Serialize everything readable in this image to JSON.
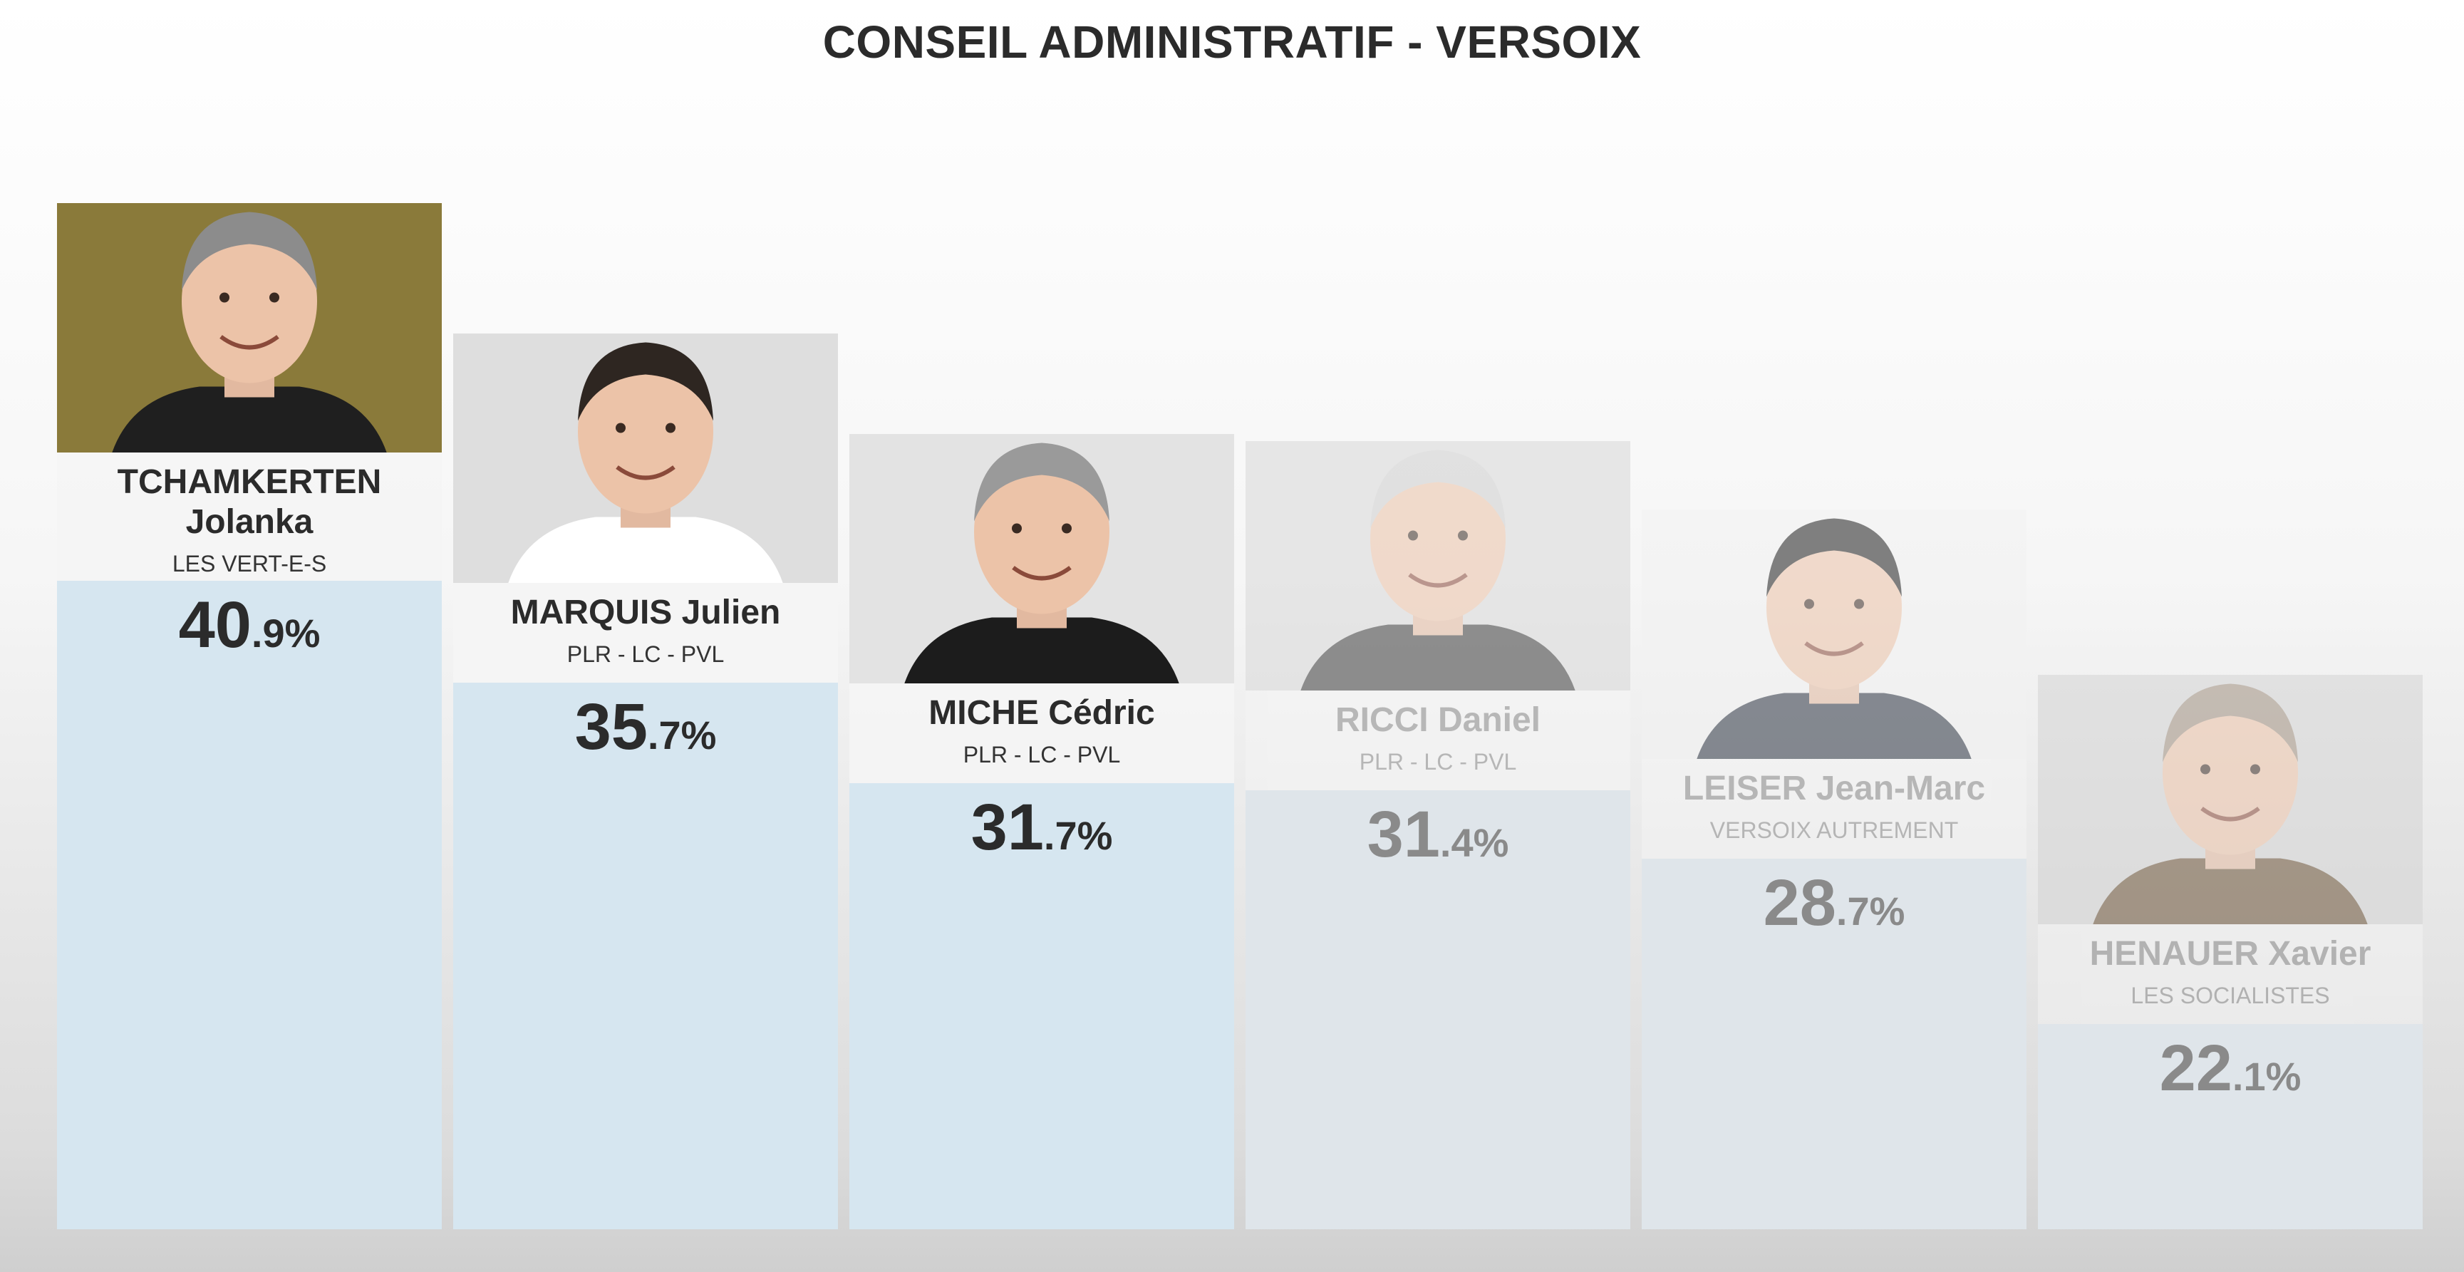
{
  "title": "CONSEIL ADMINISTRATIF - VERSOIX",
  "chart_data": {
    "type": "bar",
    "title": "CONSEIL ADMINISTRATIF - VERSOIX",
    "categories": [
      "TCHAMKERTEN Jolanka",
      "MARQUIS Julien",
      "MICHE Cédric",
      "RICCI Daniel",
      "LEISER Jean-Marc",
      "HENAUER Xavier"
    ],
    "values": [
      40.9,
      35.7,
      31.7,
      31.4,
      28.7,
      22.1
    ],
    "unit": "%",
    "candidates": [
      {
        "name_line1": "TCHAMKERTEN",
        "name_line2": "Jolanka",
        "party": "LES VERT-E-S",
        "pct_int": "40",
        "pct_dec": ".9%",
        "value": 40.9,
        "elected": true,
        "photo_bg": "#8a7a3a",
        "suit": "#1f1f1f",
        "hair": "#8c8c8c"
      },
      {
        "name_line1": "MARQUIS Julien",
        "name_line2": "",
        "party": "PLR - LC - PVL",
        "pct_int": "35",
        "pct_dec": ".7%",
        "value": 35.7,
        "elected": true,
        "photo_bg": "#dedede",
        "suit": "#ffffff",
        "hair": "#2e2621"
      },
      {
        "name_line1": "MICHE Cédric",
        "name_line2": "",
        "party": "PLR - LC - PVL",
        "pct_int": "31",
        "pct_dec": ".7%",
        "value": 31.7,
        "elected": true,
        "photo_bg": "#e3e3e3",
        "suit": "#1c1c1c",
        "hair": "#9a9a9a"
      },
      {
        "name_line1": "RICCI Daniel",
        "name_line2": "",
        "party": "PLR - LC - PVL",
        "pct_int": "31",
        "pct_dec": ".4%",
        "value": 31.4,
        "elected": false,
        "photo_bg": "#d9d9d9",
        "suit": "#3a3a3a",
        "hair": "#cfcfcf"
      },
      {
        "name_line1": "LEISER Jean-Marc",
        "name_line2": "",
        "party": "VERSOIX AUTREMENT",
        "pct_int": "28",
        "pct_dec": ".7%",
        "value": 28.7,
        "elected": false,
        "photo_bg": "#f2f2f2",
        "suit": "#2c3442",
        "hair": "#1e1e1e"
      },
      {
        "name_line1": "HENAUER Xavier",
        "name_line2": "",
        "party": "LES SOCIALISTES",
        "pct_int": "22",
        "pct_dec": ".1%",
        "value": 22.1,
        "elected": false,
        "photo_bg": "#d4d4d4",
        "suit": "#6a5236",
        "hair": "#a09080"
      }
    ]
  }
}
